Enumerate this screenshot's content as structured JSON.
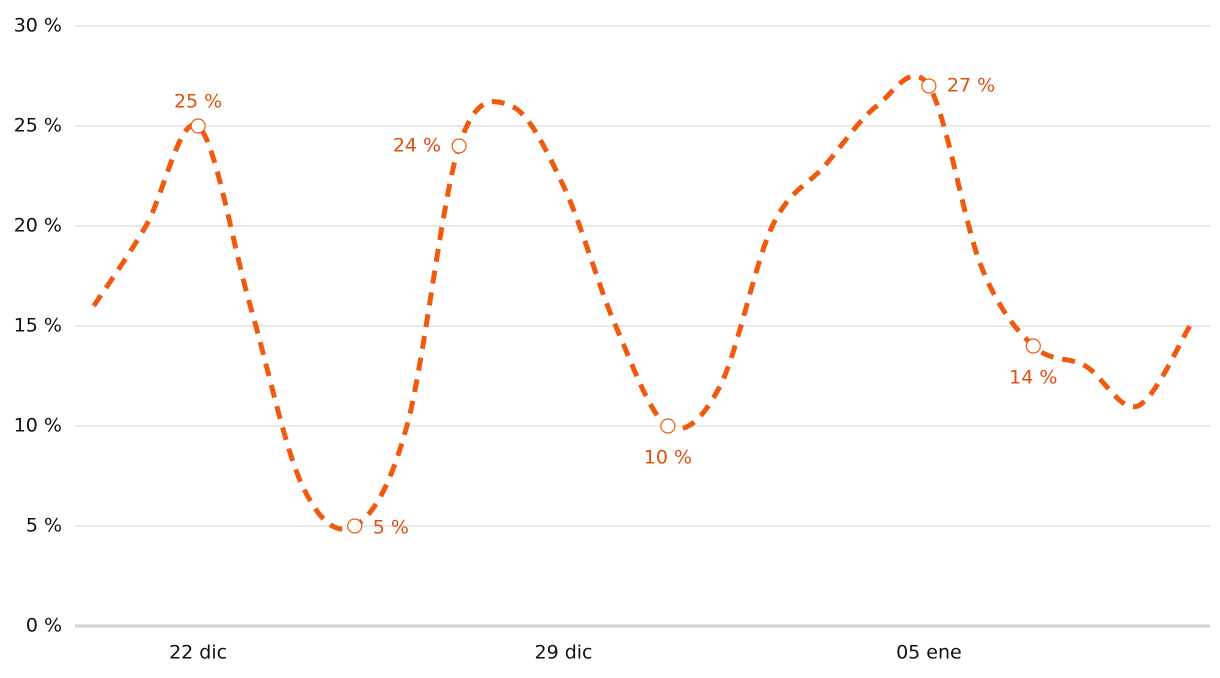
{
  "chart_data": {
    "type": "line",
    "categories": [
      null,
      null,
      "22 dic",
      null,
      null,
      null,
      null,
      null,
      null,
      "29 dic",
      null,
      null,
      null,
      null,
      null,
      null,
      "05 ene",
      null,
      null,
      null,
      null,
      null
    ],
    "series": [
      {
        "color": "#f05a0e",
        "values": [
          16,
          20,
          25,
          16,
          7,
          5,
          10,
          24,
          26,
          22,
          15,
          10,
          12,
          20,
          23,
          26,
          27,
          18,
          14,
          13,
          11,
          15
        ],
        "value_labels": [
          null,
          null,
          "25 %",
          null,
          null,
          "5 %",
          null,
          "24 %",
          null,
          null,
          null,
          "10 %",
          null,
          null,
          null,
          null,
          "27 %",
          null,
          "14 %",
          null,
          null,
          null
        ]
      }
    ],
    "ylim": [
      0,
      30
    ],
    "yticks": [
      {
        "value": 0,
        "label": "0 %"
      },
      {
        "value": 5,
        "label": "5 %"
      },
      {
        "value": 10,
        "label": "10 %"
      },
      {
        "value": 15,
        "label": "15 %"
      },
      {
        "value": 20,
        "label": "20 %"
      },
      {
        "value": 25,
        "label": "25 %"
      },
      {
        "value": 30,
        "label": "30 %"
      }
    ],
    "grid": true,
    "dashed": true
  }
}
